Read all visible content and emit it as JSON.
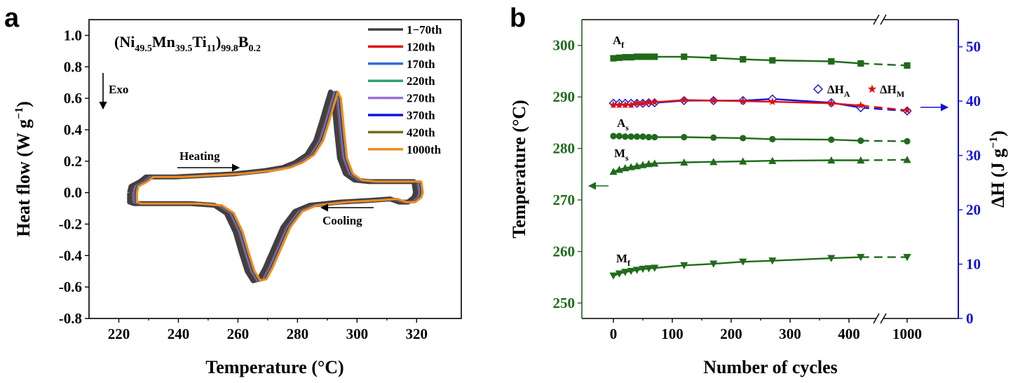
{
  "panel_a": {
    "label": "a",
    "formula": {
      "base": "(Ni",
      "s1": "49.5",
      "t1": "Mn",
      "s2": "39.5",
      "t2": "Ti",
      "s3": "11",
      "t3": ")",
      "s4": "99.8",
      "t4": "B",
      "s5": "0.2"
    },
    "annotations": {
      "exo": "Exo",
      "heating": "Heating",
      "cooling": "Cooling"
    },
    "xlabel": "Temperature (°C)",
    "ylabel_main": "Heat flow (W g",
    "ylabel_sup": "−1",
    "ylabel_end": ")"
  },
  "panel_b": {
    "label": "b",
    "xlabel": "Number of cycles",
    "ylabel_left": "Temperature (°C)",
    "ylabel_right_main": "ΔH (J g",
    "ylabel_right_sup": "−1",
    "ylabel_right_end": ")",
    "curve_labels": {
      "Af": {
        "main": "A",
        "sub": "f"
      },
      "As": {
        "main": "A",
        "sub": "s"
      },
      "Ms": {
        "main": "M",
        "sub": "s"
      },
      "Mf": {
        "main": "M",
        "sub": "f"
      }
    },
    "legend": {
      "dHA": {
        "main": "ΔH",
        "sub": "A"
      },
      "dHM": {
        "main": "ΔH",
        "sub": "M"
      }
    }
  },
  "colors": {
    "green": "#1f6b1a",
    "blue": "#1010e0",
    "red": "#e01010"
  },
  "chart_data": [
    {
      "type": "line",
      "title": "",
      "xlabel": "Temperature (°C)",
      "ylabel": "Heat flow (W g−1)",
      "xlim": [
        210,
        335
      ],
      "ylim": [
        -0.8,
        1.1
      ],
      "xticks": [
        220,
        240,
        260,
        280,
        300,
        320
      ],
      "yticks": [
        -0.8,
        -0.6,
        -0.4,
        -0.2,
        0.0,
        0.2,
        0.4,
        0.6,
        0.8,
        1.0
      ],
      "legend_position": "top-right",
      "series": [
        {
          "name": "1−70th",
          "color": "#404040"
        },
        {
          "name": "120th",
          "color": "#e01010"
        },
        {
          "name": "170th",
          "color": "#3070d0"
        },
        {
          "name": "220th",
          "color": "#30a070"
        },
        {
          "name": "270th",
          "color": "#a070d0"
        },
        {
          "name": "370th",
          "color": "#1010e0"
        },
        {
          "name": "420th",
          "color": "#707010"
        },
        {
          "name": "1000th",
          "color": "#f08c1e"
        }
      ],
      "heating_curve": [
        [
          224.5,
          0.0
        ],
        [
          225,
          0.04
        ],
        [
          228,
          0.07
        ],
        [
          230,
          0.1
        ],
        [
          232,
          0.1
        ],
        [
          240,
          0.1
        ],
        [
          250,
          0.11
        ],
        [
          260,
          0.12
        ],
        [
          270,
          0.14
        ],
        [
          276,
          0.16
        ],
        [
          280,
          0.19
        ],
        [
          284,
          0.24
        ],
        [
          287,
          0.33
        ],
        [
          289,
          0.45
        ],
        [
          291,
          0.58
        ],
        [
          292,
          0.64
        ],
        [
          293,
          0.6
        ],
        [
          294,
          0.4
        ],
        [
          295,
          0.22
        ],
        [
          297,
          0.12
        ],
        [
          300,
          0.08
        ],
        [
          305,
          0.07
        ],
        [
          315,
          0.07
        ],
        [
          320,
          0.07
        ],
        [
          320.5,
          0.0
        ]
      ],
      "cooling_curve": [
        [
          320.5,
          0.0
        ],
        [
          320,
          -0.03
        ],
        [
          318,
          -0.06
        ],
        [
          315,
          -0.06
        ],
        [
          312,
          -0.04
        ],
        [
          305,
          -0.05
        ],
        [
          295,
          -0.06
        ],
        [
          285,
          -0.08
        ],
        [
          280,
          -0.12
        ],
        [
          276,
          -0.22
        ],
        [
          273,
          -0.35
        ],
        [
          270,
          -0.48
        ],
        [
          268,
          -0.55
        ],
        [
          266,
          -0.56
        ],
        [
          264,
          -0.5
        ],
        [
          262,
          -0.38
        ],
        [
          260,
          -0.25
        ],
        [
          257,
          -0.13
        ],
        [
          253,
          -0.08
        ],
        [
          245,
          -0.07
        ],
        [
          235,
          -0.07
        ],
        [
          226,
          -0.07
        ],
        [
          224.5,
          -0.06
        ],
        [
          224.5,
          0.0
        ]
      ]
    },
    {
      "type": "scatter",
      "title": "",
      "xlabel": "Number of cycles",
      "ylabel_left": "Temperature (°C)",
      "ylabel_right": "ΔH (J g−1)",
      "x_ticks": [
        0,
        100,
        200,
        300,
        400,
        1000
      ],
      "x_break": "between 400 and 1000",
      "ylim_left": [
        247,
        305
      ],
      "ylim_right": [
        0,
        55
      ],
      "yticks_left": [
        250,
        260,
        270,
        280,
        290,
        300
      ],
      "yticks_right": [
        0,
        10,
        20,
        30,
        40,
        50
      ],
      "series": [
        {
          "name": "Af",
          "axis": "left",
          "marker": "square",
          "points": [
            [
              0,
              297.5
            ],
            [
              10,
              297.6
            ],
            [
              20,
              297.7
            ],
            [
              30,
              297.7
            ],
            [
              40,
              297.8
            ],
            [
              50,
              297.8
            ],
            [
              60,
              297.8
            ],
            [
              70,
              297.8
            ],
            [
              120,
              297.8
            ],
            [
              170,
              297.6
            ],
            [
              220,
              297.3
            ],
            [
              270,
              297.1
            ],
            [
              370,
              296.9
            ],
            [
              420,
              296.5
            ],
            [
              1000,
              296.1
            ]
          ]
        },
        {
          "name": "As",
          "axis": "left",
          "marker": "circle",
          "points": [
            [
              0,
              282.4
            ],
            [
              10,
              282.4
            ],
            [
              20,
              282.3
            ],
            [
              30,
              282.3
            ],
            [
              40,
              282.3
            ],
            [
              50,
              282.3
            ],
            [
              60,
              282.2
            ],
            [
              70,
              282.2
            ],
            [
              120,
              282.2
            ],
            [
              170,
              282.1
            ],
            [
              220,
              282.0
            ],
            [
              270,
              281.8
            ],
            [
              370,
              281.7
            ],
            [
              420,
              281.5
            ],
            [
              1000,
              281.4
            ]
          ]
        },
        {
          "name": "Ms",
          "axis": "left",
          "marker": "triangle-up",
          "points": [
            [
              0,
              275.5
            ],
            [
              10,
              275.9
            ],
            [
              20,
              276.2
            ],
            [
              30,
              276.4
            ],
            [
              40,
              276.6
            ],
            [
              50,
              276.8
            ],
            [
              60,
              277.0
            ],
            [
              70,
              277.1
            ],
            [
              120,
              277.3
            ],
            [
              170,
              277.4
            ],
            [
              220,
              277.5
            ],
            [
              270,
              277.6
            ],
            [
              370,
              277.7
            ],
            [
              420,
              277.7
            ],
            [
              1000,
              277.8
            ]
          ]
        },
        {
          "name": "Mf",
          "axis": "left",
          "marker": "triangle-down",
          "points": [
            [
              0,
              255.3
            ],
            [
              10,
              255.7
            ],
            [
              20,
              256.0
            ],
            [
              30,
              256.2
            ],
            [
              40,
              256.4
            ],
            [
              50,
              256.6
            ],
            [
              60,
              256.7
            ],
            [
              70,
              256.8
            ],
            [
              120,
              257.3
            ],
            [
              170,
              257.6
            ],
            [
              220,
              258.0
            ],
            [
              270,
              258.2
            ],
            [
              370,
              258.7
            ],
            [
              420,
              258.9
            ],
            [
              1000,
              258.9
            ]
          ]
        },
        {
          "name": "ΔHA",
          "axis": "right",
          "marker": "diamond",
          "points": [
            [
              0,
              39.6
            ],
            [
              10,
              39.6
            ],
            [
              20,
              39.6
            ],
            [
              30,
              39.6
            ],
            [
              40,
              39.6
            ],
            [
              50,
              39.6
            ],
            [
              60,
              39.7
            ],
            [
              70,
              39.7
            ],
            [
              120,
              40.1
            ],
            [
              170,
              40.1
            ],
            [
              220,
              40.1
            ],
            [
              270,
              40.4
            ],
            [
              370,
              39.7
            ],
            [
              420,
              38.8
            ],
            [
              1000,
              38.2
            ]
          ]
        },
        {
          "name": "ΔHM",
          "axis": "right",
          "marker": "star",
          "points": [
            [
              0,
              39.3
            ],
            [
              10,
              39.3
            ],
            [
              20,
              39.3
            ],
            [
              30,
              39.3
            ],
            [
              40,
              39.6
            ],
            [
              50,
              39.6
            ],
            [
              60,
              39.8
            ],
            [
              70,
              39.8
            ],
            [
              120,
              40.2
            ],
            [
              170,
              40.1
            ],
            [
              220,
              40.0
            ],
            [
              270,
              39.9
            ],
            [
              370,
              39.6
            ],
            [
              420,
              39.2
            ],
            [
              1000,
              38.3
            ]
          ]
        }
      ]
    }
  ]
}
